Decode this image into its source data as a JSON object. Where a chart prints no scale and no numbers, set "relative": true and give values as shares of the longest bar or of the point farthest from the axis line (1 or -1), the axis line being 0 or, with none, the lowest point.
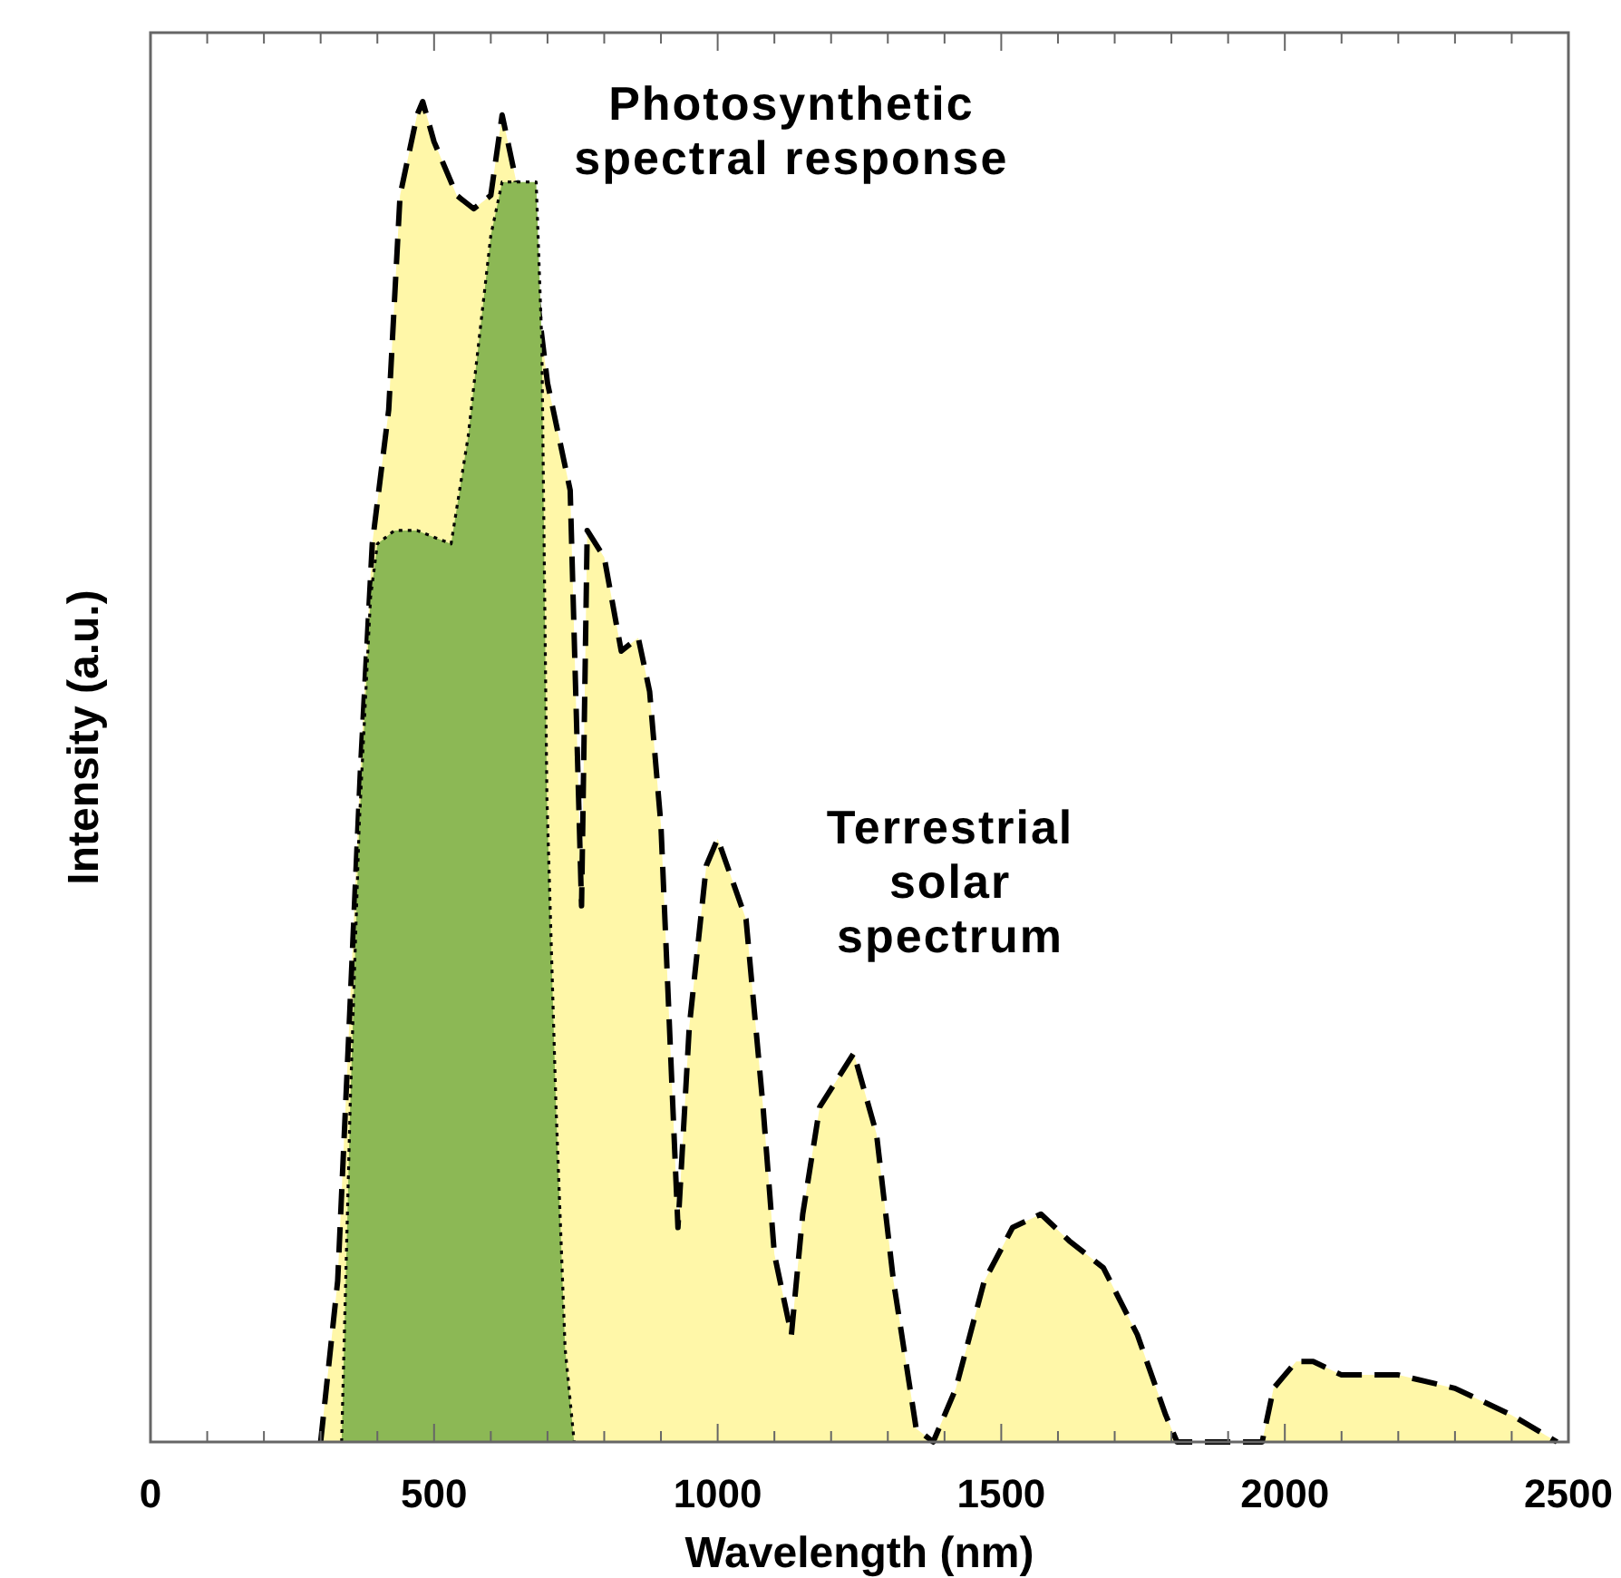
{
  "chart_data": {
    "type": "area",
    "relative": true,
    "xlabel": "Wavelength (nm)",
    "ylabel": "Intensity (a.u.)",
    "xlim": [
      0,
      2500
    ],
    "xticks": [
      0,
      {
        "value": 100,
        "label": null
      },
      {
        "value": 200,
        "label": null
      },
      {
        "value": 300,
        "label": null
      },
      {
        "value": 400,
        "label": null
      },
      500,
      {
        "value": 600,
        "label": null
      },
      {
        "value": 700,
        "label": null
      },
      {
        "value": 800,
        "label": null
      },
      {
        "value": 900,
        "label": null
      },
      1000,
      {
        "value": 1100,
        "label": null
      },
      {
        "value": 1200,
        "label": null
      },
      {
        "value": 1300,
        "label": null
      },
      {
        "value": 1400,
        "label": null
      },
      1500,
      {
        "value": 1600,
        "label": null
      },
      {
        "value": 1700,
        "label": null
      },
      {
        "value": 1800,
        "label": null
      },
      {
        "value": 1900,
        "label": null
      },
      2000,
      {
        "value": 2100,
        "label": null
      },
      {
        "value": 2200,
        "label": null
      },
      {
        "value": 2300,
        "label": null
      },
      {
        "value": 2400,
        "label": null
      },
      2500
    ],
    "grid": false,
    "series": [
      {
        "name": "Terrestrial solar spectrum",
        "color": "#fff7a8",
        "line_style": "dashed",
        "x": [
          300,
          330,
          346,
          370,
          391,
          420,
          440,
          470,
          480,
          500,
          540,
          570,
          600,
          620,
          650,
          680,
          700,
          720,
          740,
          760,
          770,
          800,
          830,
          860,
          880,
          900,
          930,
          950,
          980,
          1000,
          1050,
          1080,
          1100,
          1130,
          1150,
          1180,
          1240,
          1280,
          1310,
          1350,
          1380,
          1420,
          1470,
          1520,
          1570,
          1620,
          1680,
          1740,
          1790,
          1810,
          1900,
          1960,
          1980,
          2020,
          2050,
          2100,
          2200,
          2300,
          2400,
          2480
        ],
        "values": [
          0,
          0.12,
          0.27,
          0.5,
          0.67,
          0.77,
          0.93,
          0.99,
          1,
          0.97,
          0.93,
          0.92,
          0.93,
          0.99,
          0.93,
          0.86,
          0.79,
          0.75,
          0.71,
          0.4,
          0.68,
          0.66,
          0.59,
          0.6,
          0.56,
          0.46,
          0.16,
          0.31,
          0.43,
          0.45,
          0.39,
          0.25,
          0.14,
          0.08,
          0.17,
          0.25,
          0.29,
          0.23,
          0.12,
          0.01,
          0,
          0.04,
          0.12,
          0.16,
          0.17,
          0.15,
          0.13,
          0.08,
          0.02,
          0,
          0,
          0,
          0.04,
          0.06,
          0.06,
          0.05,
          0.05,
          0.04,
          0.02,
          0
        ]
      },
      {
        "name": "Photosynthetic spectral response",
        "color": "#8cb855",
        "line_style": "dotted",
        "x": [
          337,
          352,
          368,
          388,
          400,
          430,
          470,
          530,
          560,
          600,
          620,
          650,
          680,
          690,
          699,
          715,
          731,
          747
        ],
        "values": [
          0,
          0.25,
          0.46,
          0.63,
          0.67,
          0.68,
          0.68,
          0.67,
          0.75,
          0.9,
          0.94,
          0.94,
          0.94,
          0.82,
          0.48,
          0.25,
          0.07,
          0
        ]
      }
    ]
  }
}
